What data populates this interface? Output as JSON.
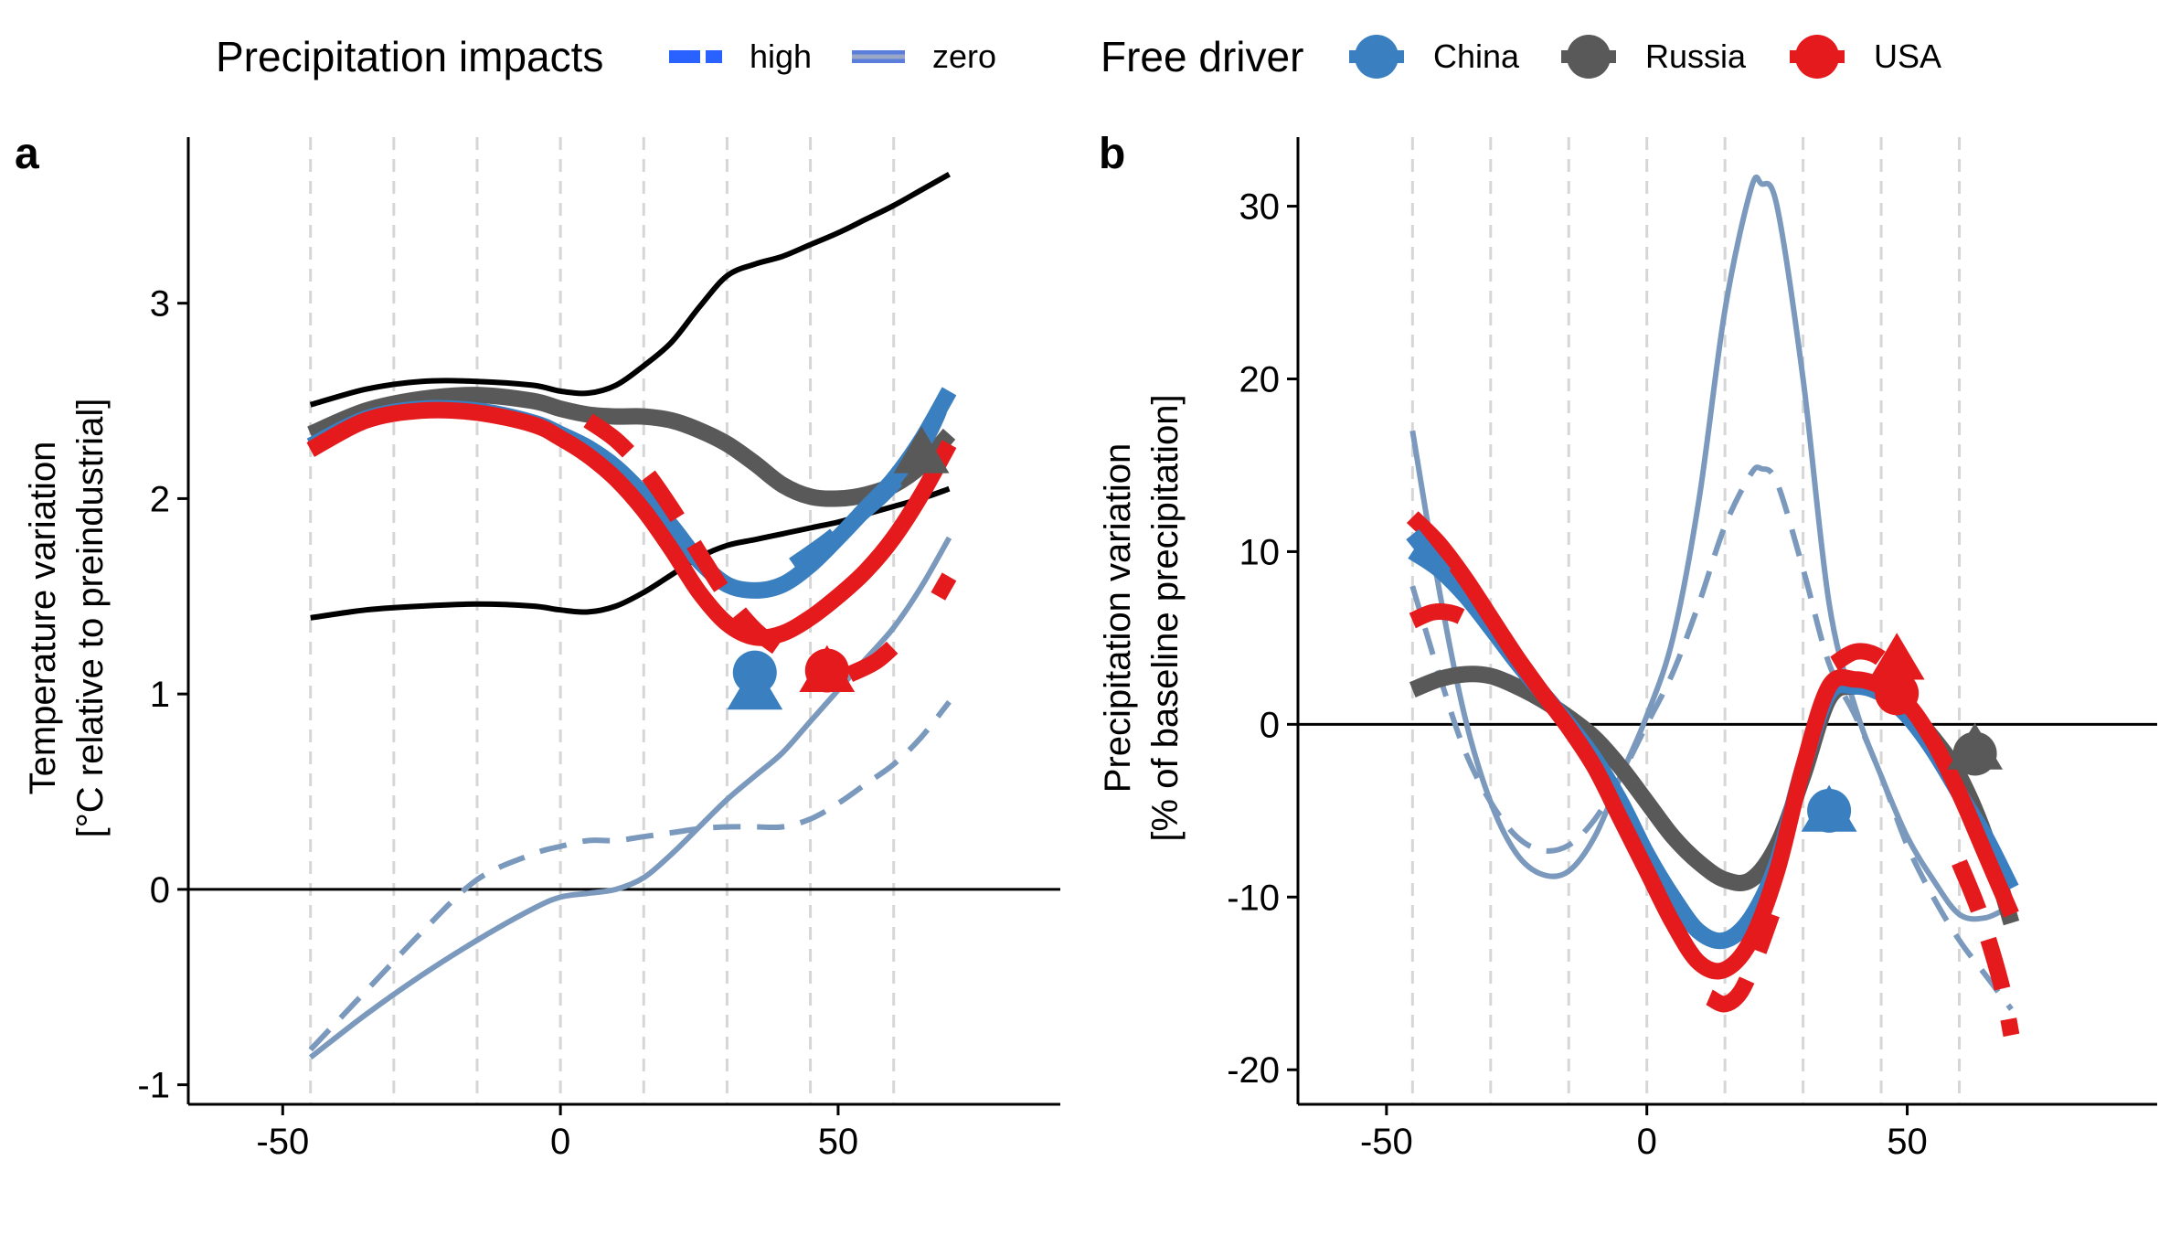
{
  "legend": {
    "precip_title": "Precipitation impacts",
    "precip_items": [
      {
        "label": "high",
        "style": "dashed",
        "color": "#2962ff"
      },
      {
        "label": "zero",
        "style": "solid",
        "color": "#5b7ddb"
      }
    ],
    "driver_title": "Free driver",
    "driver_items": [
      {
        "label": "China",
        "color": "#3a7fc0"
      },
      {
        "label": "Russia",
        "color": "#595959"
      },
      {
        "label": "USA",
        "color": "#e41a1c"
      }
    ]
  },
  "chart_data": [
    {
      "type": "line",
      "panel": "a",
      "ylabel_line1": "Temperature variation",
      "ylabel_line2": "[°C relative to preindustrial]",
      "xlabel": "",
      "xlim": [
        -67,
        90
      ],
      "ylim": [
        -1.1,
        3.85
      ],
      "xticks": [
        -50,
        0,
        50
      ],
      "yticks": [
        -1,
        0,
        1,
        2,
        3
      ],
      "vlines": [
        -45,
        -30,
        -15,
        0,
        15,
        30,
        45,
        60
      ],
      "hline": 0,
      "series": [
        {
          "role": "envelope-upper",
          "color": "#000000",
          "style": "solid",
          "width": 6,
          "x": [
            -45,
            -35,
            -25,
            -15,
            -5,
            0,
            5,
            10,
            15,
            20,
            25,
            30,
            35,
            40,
            45,
            50,
            55,
            60,
            65,
            70
          ],
          "y": [
            2.48,
            2.56,
            2.6,
            2.6,
            2.58,
            2.55,
            2.54,
            2.58,
            2.68,
            2.8,
            2.98,
            3.14,
            3.2,
            3.24,
            3.3,
            3.36,
            3.43,
            3.5,
            3.58,
            3.66
          ]
        },
        {
          "role": "envelope-lower",
          "color": "#000000",
          "style": "solid",
          "width": 6,
          "x": [
            -45,
            -35,
            -25,
            -15,
            -5,
            0,
            5,
            10,
            15,
            20,
            25,
            30,
            35,
            40,
            45,
            50,
            55,
            60,
            65,
            70
          ],
          "y": [
            1.39,
            1.43,
            1.45,
            1.46,
            1.45,
            1.43,
            1.42,
            1.45,
            1.52,
            1.61,
            1.7,
            1.76,
            1.79,
            1.82,
            1.85,
            1.88,
            1.92,
            1.96,
            2.0,
            2.05
          ]
        },
        {
          "role": "baseline-zero",
          "color": "#7a99bd",
          "style": "solid",
          "width": 6,
          "x": [
            -45,
            -35,
            -25,
            -15,
            -5,
            0,
            5,
            10,
            15,
            20,
            25,
            30,
            35,
            40,
            45,
            50,
            55,
            60,
            65,
            70
          ],
          "y": [
            -0.86,
            -0.64,
            -0.44,
            -0.26,
            -0.1,
            -0.04,
            -0.02,
            0.0,
            0.06,
            0.18,
            0.32,
            0.46,
            0.58,
            0.7,
            0.86,
            1.02,
            1.18,
            1.34,
            1.55,
            1.8
          ]
        },
        {
          "role": "baseline-high",
          "color": "#7a99bd",
          "style": "dashed",
          "width": 6,
          "x": [
            -45,
            -35,
            -25,
            -15,
            -5,
            0,
            5,
            10,
            15,
            20,
            25,
            30,
            35,
            40,
            45,
            50,
            55,
            60,
            65,
            70
          ],
          "y": [
            -0.82,
            -0.52,
            -0.22,
            0.05,
            0.18,
            0.22,
            0.25,
            0.25,
            0.27,
            0.29,
            0.31,
            0.32,
            0.32,
            0.32,
            0.36,
            0.44,
            0.54,
            0.64,
            0.78,
            0.96
          ]
        },
        {
          "name": "Russia",
          "color": "#595959",
          "style": "solid",
          "width": 18,
          "x": [
            -45,
            -35,
            -25,
            -15,
            -5,
            0,
            5,
            10,
            15,
            20,
            25,
            30,
            35,
            40,
            45,
            50,
            55,
            60,
            65,
            70
          ],
          "y": [
            2.33,
            2.45,
            2.51,
            2.53,
            2.5,
            2.46,
            2.43,
            2.42,
            2.42,
            2.4,
            2.35,
            2.28,
            2.18,
            2.07,
            2.01,
            2.0,
            2.02,
            2.07,
            2.17,
            2.33
          ]
        },
        {
          "name": "China",
          "color": "#3a7fc0",
          "style": "solid",
          "width": 18,
          "x": [
            -45,
            -35,
            -25,
            -15,
            -5,
            0,
            5,
            10,
            15,
            20,
            25,
            30,
            35,
            40,
            45,
            50,
            55,
            60,
            65,
            70
          ],
          "y": [
            2.27,
            2.41,
            2.46,
            2.45,
            2.39,
            2.33,
            2.26,
            2.16,
            2.02,
            1.86,
            1.68,
            1.56,
            1.53,
            1.56,
            1.66,
            1.8,
            1.95,
            2.1,
            2.3,
            2.55
          ]
        },
        {
          "name": "USA",
          "color": "#e41a1c",
          "style": "solid",
          "width": 18,
          "x": [
            -45,
            -35,
            -25,
            -15,
            -5,
            0,
            5,
            10,
            15,
            20,
            25,
            30,
            35,
            40,
            45,
            50,
            55,
            60,
            65,
            70
          ],
          "y": [
            2.25,
            2.4,
            2.45,
            2.44,
            2.38,
            2.31,
            2.22,
            2.1,
            1.94,
            1.74,
            1.52,
            1.36,
            1.29,
            1.31,
            1.39,
            1.5,
            1.63,
            1.8,
            2.02,
            2.28
          ]
        },
        {
          "name": "USA",
          "color": "#e41a1c",
          "style": "dashed",
          "width": 18,
          "x": [
            5,
            10,
            15,
            20,
            25,
            30,
            35,
            40
          ],
          "y": [
            2.4,
            2.3,
            2.15,
            1.95,
            1.72,
            1.5,
            1.33,
            1.22
          ]
        },
        {
          "name": "USA",
          "color": "#e41a1c",
          "style": "dashed",
          "width": 18,
          "x": [
            52,
            57,
            62
          ],
          "y": [
            1.1,
            1.17,
            1.3
          ]
        },
        {
          "name": "USA",
          "color": "#e41a1c",
          "style": "dashed",
          "width": 18,
          "x": [
            68,
            70
          ],
          "y": [
            1.5,
            1.6
          ]
        },
        {
          "name": "China",
          "color": "#3a7fc0",
          "style": "dashed",
          "width": 18,
          "x": [
            42,
            48,
            54,
            60,
            66,
            70
          ],
          "y": [
            1.66,
            1.78,
            1.92,
            2.08,
            2.32,
            2.58
          ]
        }
      ],
      "markers": [
        {
          "name": "China",
          "shape": "circle",
          "x": 35,
          "y": 1.11,
          "color": "#3a7fc0"
        },
        {
          "name": "China",
          "shape": "triangle",
          "x": 35,
          "y": 1.01,
          "color": "#3a7fc0"
        },
        {
          "name": "USA",
          "shape": "circle",
          "x": 48,
          "y": 1.12,
          "color": "#e41a1c"
        },
        {
          "name": "USA",
          "shape": "triangle",
          "x": 48,
          "y": 1.1,
          "color": "#e41a1c"
        },
        {
          "name": "Russia",
          "shape": "triangle",
          "x": 65,
          "y": 2.22,
          "color": "#595959"
        }
      ]
    },
    {
      "type": "line",
      "panel": "b",
      "ylabel_line1": "Precipitation variation",
      "ylabel_line2": "[% of baseline precipitation]",
      "xlabel": "",
      "xlim": [
        -67,
        98
      ],
      "ylim": [
        -22,
        34
      ],
      "xticks": [
        -50,
        0,
        50
      ],
      "yticks": [
        -20,
        -10,
        0,
        10,
        20,
        30
      ],
      "vlines": [
        -45,
        -30,
        -15,
        0,
        15,
        30,
        45,
        60
      ],
      "hline": 0,
      "series": [
        {
          "role": "baseline-zero",
          "color": "#7a99bd",
          "style": "solid",
          "width": 6,
          "x": [
            -45,
            -40,
            -35,
            -30,
            -25,
            -20,
            -15,
            -10,
            -5,
            0,
            5,
            10,
            15,
            20,
            22,
            25,
            30,
            35,
            40,
            45,
            50,
            55,
            60,
            65,
            70
          ],
          "y": [
            17,
            8,
            0.5,
            -4.5,
            -7.5,
            -8.7,
            -8.5,
            -6.5,
            -3,
            0.5,
            5,
            13,
            24,
            31,
            31.3,
            30,
            20,
            7,
            1,
            -3,
            -6.5,
            -9,
            -11,
            -11.2,
            -10.5
          ]
        },
        {
          "role": "baseline-high",
          "color": "#7a99bd",
          "style": "dashed",
          "width": 6,
          "x": [
            -45,
            -40,
            -35,
            -30,
            -25,
            -20,
            -15,
            -10,
            -5,
            0,
            5,
            10,
            15,
            20,
            22,
            25,
            30,
            35,
            40,
            45,
            50,
            55,
            60,
            65,
            70
          ],
          "y": [
            8,
            3,
            -1.5,
            -4.5,
            -6.5,
            -7.3,
            -7,
            -5.5,
            -3,
            0,
            3,
            7,
            11.5,
            14.5,
            14.8,
            14,
            9,
            3.5,
            0.5,
            -3,
            -7,
            -10,
            -12.5,
            -14.5,
            -16.5
          ]
        },
        {
          "name": "Russia",
          "color": "#595959",
          "style": "solid",
          "width": 18,
          "x": [
            -45,
            -40,
            -35,
            -30,
            -25,
            -20,
            -15,
            -10,
            -5,
            0,
            5,
            10,
            15,
            20,
            25,
            30,
            35,
            40,
            45,
            50,
            55,
            60,
            65,
            70
          ],
          "y": [
            2,
            2.6,
            2.9,
            2.8,
            2.2,
            1.4,
            0.4,
            -0.8,
            -2.5,
            -4.5,
            -6.5,
            -8,
            -9,
            -9,
            -7,
            -3,
            1.5,
            2.2,
            1.8,
            0.8,
            -0.8,
            -3,
            -6.5,
            -11.5
          ]
        },
        {
          "name": "China",
          "color": "#3a7fc0",
          "style": "solid",
          "width": 18,
          "x": [
            -45,
            -40,
            -35,
            -30,
            -25,
            -20,
            -15,
            -10,
            -5,
            0,
            5,
            10,
            15,
            20,
            25,
            30,
            35,
            40,
            45,
            50,
            55,
            60,
            65,
            70
          ],
          "y": [
            10,
            9,
            7.5,
            5.6,
            3.6,
            1.8,
            0,
            -2,
            -4.5,
            -7.5,
            -10,
            -12,
            -12.5,
            -11.2,
            -8,
            -2.5,
            1.8,
            2.2,
            1.8,
            0.5,
            -1.5,
            -4,
            -6.5,
            -9.5
          ]
        },
        {
          "name": "USA",
          "color": "#e41a1c",
          "style": "solid",
          "width": 18,
          "x": [
            -45,
            -40,
            -35,
            -30,
            -25,
            -20,
            -15,
            -10,
            -5,
            0,
            5,
            10,
            15,
            20,
            25,
            30,
            35,
            40,
            45,
            50,
            55,
            60,
            65,
            70
          ],
          "y": [
            12,
            10.5,
            8.5,
            6.2,
            3.9,
            1.8,
            -0.2,
            -2.5,
            -5.5,
            -8.5,
            -11.5,
            -13.8,
            -14.2,
            -12.5,
            -8.5,
            -2.5,
            2.2,
            2.6,
            2.2,
            1.2,
            -1,
            -4,
            -7.5,
            -11
          ]
        },
        {
          "name": "USA",
          "color": "#e41a1c",
          "style": "dashed",
          "width": 18,
          "x": [
            -45,
            -41,
            -37,
            -33
          ],
          "y": [
            6,
            6.5,
            6.4,
            5.8
          ]
        },
        {
          "name": "USA",
          "color": "#e41a1c",
          "style": "dashed",
          "width": 18,
          "x": [
            12,
            15,
            18,
            21,
            24
          ],
          "y": [
            -15.8,
            -16.2,
            -15.5,
            -13.5,
            -11
          ]
        },
        {
          "name": "USA",
          "color": "#e41a1c",
          "style": "dashed",
          "width": 18,
          "x": [
            36,
            40,
            44,
            48
          ],
          "y": [
            3.5,
            4.2,
            4,
            3
          ]
        },
        {
          "name": "USA",
          "color": "#e41a1c",
          "style": "dashed",
          "width": 18,
          "x": [
            60,
            64,
            68,
            70
          ],
          "y": [
            -8,
            -11,
            -15,
            -18
          ]
        },
        {
          "name": "China",
          "color": "#3a7fc0",
          "style": "dashed",
          "width": 18,
          "x": [
            -45,
            -41,
            -37
          ],
          "y": [
            11,
            9.5,
            8
          ]
        }
      ],
      "markers": [
        {
          "name": "China",
          "shape": "circle",
          "x": 35,
          "y": -5,
          "color": "#3a7fc0"
        },
        {
          "name": "China",
          "shape": "triangle",
          "x": 35,
          "y": -5.2,
          "color": "#3a7fc0"
        },
        {
          "name": "USA",
          "shape": "circle",
          "x": 48,
          "y": 1.8,
          "color": "#e41a1c"
        },
        {
          "name": "USA",
          "shape": "triangle",
          "x": 48,
          "y": 3.6,
          "color": "#e41a1c"
        },
        {
          "name": "Russia",
          "shape": "circle",
          "x": 63,
          "y": -1.7,
          "color": "#595959"
        },
        {
          "name": "Russia",
          "shape": "triangle",
          "x": 63,
          "y": -1.6,
          "color": "#595959"
        }
      ]
    }
  ]
}
